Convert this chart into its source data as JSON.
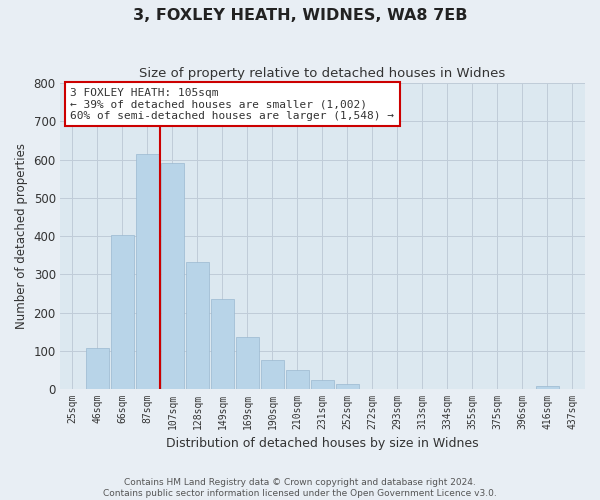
{
  "title": "3, FOXLEY HEATH, WIDNES, WA8 7EB",
  "subtitle": "Size of property relative to detached houses in Widnes",
  "xlabel": "Distribution of detached houses by size in Widnes",
  "ylabel": "Number of detached properties",
  "bar_labels": [
    "25sqm",
    "46sqm",
    "66sqm",
    "87sqm",
    "107sqm",
    "128sqm",
    "149sqm",
    "169sqm",
    "190sqm",
    "210sqm",
    "231sqm",
    "252sqm",
    "272sqm",
    "293sqm",
    "313sqm",
    "334sqm",
    "355sqm",
    "375sqm",
    "396sqm",
    "416sqm",
    "437sqm"
  ],
  "bar_values": [
    0,
    107,
    403,
    615,
    590,
    332,
    236,
    136,
    76,
    50,
    25,
    15,
    0,
    0,
    0,
    0,
    0,
    0,
    0,
    8,
    0
  ],
  "bar_color": "#b8d4e8",
  "bar_edge_color": "#9ab8d0",
  "vline_color": "#cc0000",
  "ylim": [
    0,
    800
  ],
  "yticks": [
    0,
    100,
    200,
    300,
    400,
    500,
    600,
    700,
    800
  ],
  "annotation_title": "3 FOXLEY HEATH: 105sqm",
  "annotation_line1": "← 39% of detached houses are smaller (1,002)",
  "annotation_line2": "60% of semi-detached houses are larger (1,548) →",
  "footer1": "Contains HM Land Registry data © Crown copyright and database right 2024.",
  "footer2": "Contains public sector information licensed under the Open Government Licence v3.0.",
  "bg_color": "#e8eef4",
  "plot_bg_color": "#dce8f0",
  "grid_color": "#c0ccd8"
}
